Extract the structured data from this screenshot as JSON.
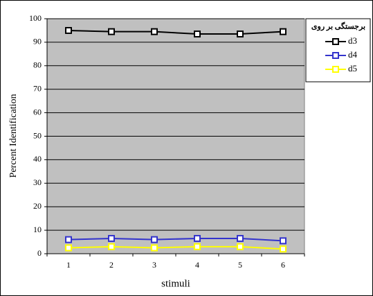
{
  "chart_data": {
    "type": "line",
    "x_label": "stimuli",
    "y_label": "Percent Identification",
    "legend_title": "برجستگی بر روی",
    "categories": [
      "1",
      "2",
      "3",
      "4",
      "5",
      "6"
    ],
    "series": [
      {
        "name": "d3",
        "color": "#000000",
        "values": [
          95,
          94.5,
          94.5,
          93.5,
          93.5,
          94.5
        ]
      },
      {
        "name": "d4",
        "color": "#3333cc",
        "values": [
          6,
          6.5,
          6,
          6.5,
          6.5,
          5.5
        ]
      },
      {
        "name": "d5",
        "color": "#ffff00",
        "values": [
          2.5,
          3,
          2.5,
          3,
          3,
          2
        ]
      }
    ],
    "ylim": [
      0,
      100
    ],
    "yticks": [
      0,
      10,
      20,
      30,
      40,
      50,
      60,
      70,
      80,
      90,
      100
    ],
    "grid": true,
    "plot_background": "#c0c0c0",
    "legend": "right"
  }
}
